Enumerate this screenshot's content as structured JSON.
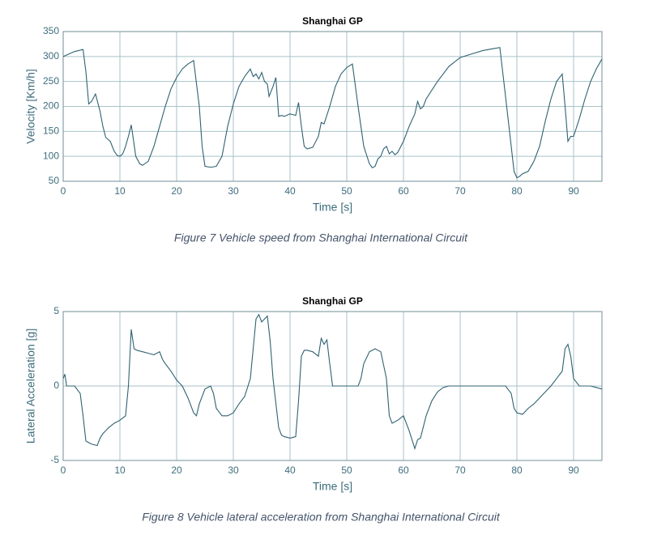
{
  "chart_data": [
    {
      "type": "line",
      "title": "Shanghai GP",
      "x_label": "Time [s]",
      "y_label": "Velocity [Km/h]",
      "caption": "Figure 7 Vehicle speed from Shanghai International Circuit",
      "color": "#2f6272",
      "grid": true,
      "xlim": [
        0,
        95
      ],
      "xticks": [
        0,
        10,
        20,
        30,
        40,
        50,
        60,
        70,
        80,
        90
      ],
      "ylim": [
        50,
        350
      ],
      "yticks": [
        50,
        100,
        150,
        200,
        250,
        300,
        350
      ],
      "x": [
        0,
        1,
        2,
        3.5,
        4,
        4.5,
        5,
        5.7,
        6.5,
        7,
        7.5,
        8.3,
        9,
        9.5,
        10,
        10.5,
        11,
        11.5,
        12,
        12.3,
        12.8,
        13.5,
        14,
        15,
        16,
        17,
        18,
        19,
        20,
        21,
        22,
        23,
        24,
        24.5,
        25,
        26,
        27,
        28,
        29,
        30,
        31,
        32,
        33,
        33.5,
        34,
        34.5,
        35,
        35.5,
        36,
        36.3,
        37,
        37.5,
        38,
        38.5,
        39,
        40,
        41,
        41.5,
        42,
        42.5,
        43,
        44,
        45,
        45.5,
        46,
        47,
        48,
        49,
        50,
        51,
        52,
        53,
        54,
        54.5,
        55,
        55.5,
        56,
        56.5,
        57,
        57.5,
        58,
        58.5,
        59,
        60,
        61,
        62,
        62.5,
        63,
        63.5,
        64,
        66,
        68,
        70,
        72,
        74,
        76,
        77,
        78,
        79,
        79.5,
        80,
        80.5,
        81,
        82,
        83,
        84,
        85,
        86,
        87,
        88,
        88.5,
        89,
        89.5,
        90,
        91,
        92,
        93,
        94,
        95
      ],
      "values": [
        300,
        305,
        310,
        314,
        270,
        205,
        210,
        225,
        190,
        160,
        138,
        130,
        110,
        102,
        100,
        105,
        120,
        140,
        163,
        140,
        100,
        85,
        82,
        90,
        120,
        160,
        200,
        235,
        258,
        275,
        285,
        292,
        200,
        120,
        80,
        78,
        80,
        100,
        160,
        205,
        240,
        260,
        275,
        260,
        265,
        255,
        268,
        250,
        245,
        220,
        240,
        258,
        180,
        182,
        180,
        185,
        182,
        208,
        160,
        120,
        115,
        118,
        140,
        168,
        165,
        200,
        240,
        265,
        278,
        285,
        200,
        120,
        85,
        77,
        80,
        95,
        100,
        115,
        120,
        105,
        110,
        103,
        108,
        130,
        160,
        185,
        210,
        195,
        200,
        215,
        250,
        280,
        298,
        305,
        312,
        316,
        318,
        220,
        120,
        70,
        57,
        60,
        65,
        70,
        90,
        120,
        170,
        215,
        250,
        265,
        200,
        130,
        140,
        140,
        175,
        215,
        250,
        275,
        295
      ]
    },
    {
      "type": "line",
      "title": "Shanghai GP",
      "x_label": "Time [s]",
      "y_label": "Lateral Acceleration [g]",
      "caption": "Figure 8 Vehicle lateral acceleration from Shanghai International Circuit",
      "color": "#2f6272",
      "grid": true,
      "xlim": [
        0,
        95
      ],
      "xticks": [
        0,
        10,
        20,
        30,
        40,
        50,
        60,
        70,
        80,
        90
      ],
      "ylim": [
        -5,
        5
      ],
      "yticks": [
        -5,
        0,
        5
      ],
      "x": [
        0,
        0.3,
        0.6,
        1,
        2,
        3,
        3.5,
        4,
        4.5,
        5,
        6,
        6.5,
        7,
        8,
        9,
        10,
        11,
        11.5,
        12,
        12.5,
        13,
        14,
        15,
        16,
        17,
        17.5,
        18,
        19,
        20,
        21,
        22,
        23,
        23.5,
        24,
        25,
        26,
        26.5,
        27,
        28,
        29,
        30,
        31,
        32,
        33,
        33.5,
        34,
        34.5,
        35,
        36,
        36.5,
        37,
        38,
        38.5,
        39,
        40,
        41,
        41.5,
        42,
        42.5,
        43,
        44,
        45,
        45.5,
        46,
        46.5,
        47,
        47.5,
        48,
        52,
        52.5,
        53,
        54,
        55,
        56,
        57,
        57.5,
        58,
        59,
        60,
        61,
        62,
        62.5,
        63,
        64,
        65,
        66,
        67,
        68,
        78,
        79,
        79.5,
        80,
        81,
        82,
        83,
        84,
        85,
        86,
        87,
        88,
        88.5,
        89,
        89.5,
        90,
        91,
        93,
        94,
        95
      ],
      "values": [
        0.5,
        0.8,
        0,
        0,
        0,
        -0.5,
        -2,
        -3.7,
        -3.8,
        -3.9,
        -4,
        -3.5,
        -3.2,
        -2.8,
        -2.5,
        -2.3,
        -2.0,
        0,
        3.8,
        2.5,
        2.4,
        2.3,
        2.2,
        2.1,
        2.3,
        1.8,
        1.5,
        1.0,
        0.4,
        0,
        -0.8,
        -1.8,
        -2,
        -1.2,
        -0.2,
        0,
        -0.5,
        -1.5,
        -2.0,
        -2.0,
        -1.8,
        -1.2,
        -0.7,
        0.5,
        2.5,
        4.5,
        4.8,
        4.3,
        4.7,
        3.0,
        0.5,
        -2.8,
        -3.3,
        -3.4,
        -3.5,
        -3.4,
        -1,
        2.0,
        2.4,
        2.4,
        2.3,
        2.0,
        3.2,
        2.8,
        3.1,
        1.5,
        0,
        0,
        0,
        0.5,
        1.5,
        2.3,
        2.5,
        2.3,
        0.5,
        -2.0,
        -2.5,
        -2.3,
        -2.0,
        -3.0,
        -4.2,
        -3.6,
        -3.5,
        -2.0,
        -1.0,
        -0.4,
        -0.1,
        0,
        0,
        -0.5,
        -1.5,
        -1.8,
        -1.9,
        -1.5,
        -1.2,
        -0.8,
        -0.4,
        0,
        0.5,
        1.0,
        2.5,
        2.8,
        2.0,
        0.5,
        0,
        0,
        -0.1,
        -0.2
      ]
    }
  ]
}
